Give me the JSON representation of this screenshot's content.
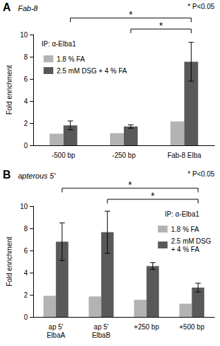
{
  "chart_data": [
    {
      "type": "bar",
      "panel_label": "A",
      "title": "Fab-8",
      "y_label": "Fold enrichment",
      "legend_title": "IP: α-Elba1",
      "legend": "upper left",
      "categories": [
        "-500 bp",
        "-250 bp",
        "Fab-8 Elba"
      ],
      "series": [
        {
          "name": "1.8 % FA",
          "color": "#b3b3b3",
          "values": [
            1.05,
            1.1,
            2.15
          ]
        },
        {
          "name": "2.5 mM DSG + 4 % FA",
          "color": "#595959",
          "values": [
            1.8,
            1.7,
            7.55
          ],
          "errors": [
            0.4,
            0.15,
            1.75
          ]
        }
      ],
      "ylim": [
        0,
        10
      ],
      "yticks": [
        0,
        2,
        4,
        6,
        8,
        10
      ],
      "grid": false,
      "significance": [
        {
          "from": "-500 bp",
          "to": "Fab-8 Elba",
          "label": "*"
        },
        {
          "from": "-250 bp",
          "to": "Fab-8 Elba",
          "label": "*"
        }
      ],
      "significance_note": "* P<0.05"
    },
    {
      "type": "bar",
      "panel_label": "B",
      "title": "apterous 5'",
      "y_label": "Fold enrichment",
      "legend_title": "IP: α-Elba1",
      "legend": "upper right",
      "categories": [
        "ap 5'\nElbaA",
        "ap 5'\nElbaB",
        "+250 bp",
        "+500 bp"
      ],
      "series": [
        {
          "name": "1.8 % FA",
          "color": "#b3b3b3",
          "values": [
            1.9,
            1.85,
            1.55,
            1.2
          ]
        },
        {
          "name": "2.5 mM DSG\n+ 4 % FA",
          "color": "#595959",
          "values": [
            6.8,
            7.65,
            4.6,
            2.65
          ],
          "errors": [
            1.7,
            1.9,
            0.3,
            0.4
          ]
        }
      ],
      "ylim": [
        0,
        10
      ],
      "yticks": [
        0,
        2,
        4,
        6,
        8,
        10
      ],
      "grid": false,
      "significance": [
        {
          "from": "ap 5'\nElbaA",
          "to": "+500 bp",
          "label": "*"
        },
        {
          "from": "ap 5'\nElbaB",
          "to": "+500 bp",
          "label": "*"
        }
      ],
      "significance_note": "* P<0.05"
    }
  ]
}
